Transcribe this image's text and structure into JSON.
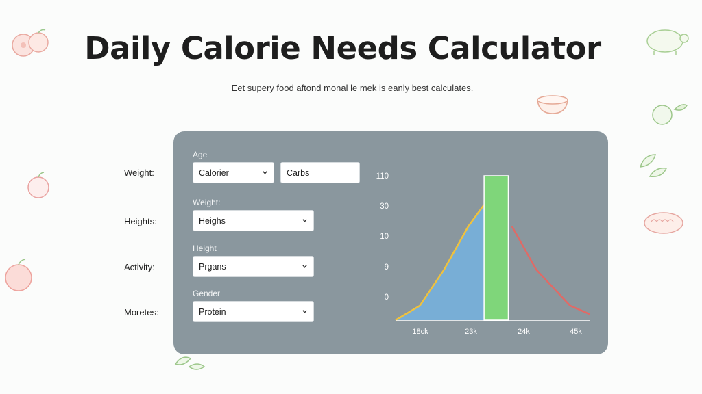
{
  "header": {
    "title": "Daily Calorie Needs Calculator",
    "subtitle": "Eet supery food aftond monal le mek is eanly best calculates."
  },
  "side_labels": [
    "Weight:",
    "Heights:",
    "Activity:",
    "Moretes:"
  ],
  "form": {
    "age": {
      "label": "Age",
      "select_value": "Calorier",
      "input_value": "Carbs"
    },
    "weight": {
      "label": "Weight:",
      "select_value": "Heighs"
    },
    "height": {
      "label": "Height",
      "select_value": "Prgans"
    },
    "gender": {
      "label": "Gender",
      "select_value": "Protein"
    }
  },
  "icons": {
    "select_chevron": "chevron-down-icon",
    "decorations": [
      "fruit-icon",
      "turtle-icon",
      "bowl-icon",
      "broccoli-icon",
      "leaf-icon",
      "apple-icon",
      "bread-icon",
      "sprout-icon"
    ]
  },
  "colors": {
    "panel": "#8a979e",
    "area_fill": "#78aed6",
    "rise_line": "#f0c23c",
    "fall_line": "#e06a66",
    "highlight_bar": "#7fd67a"
  },
  "chart_data": {
    "type": "area",
    "y_tick_labels": [
      "110",
      "30",
      "10",
      "9",
      "0"
    ],
    "x_tick_labels": [
      "18ck",
      "23k",
      "24k",
      "45k"
    ],
    "rise_series": [
      [
        0,
        0.0
      ],
      [
        1,
        0.12
      ],
      [
        2,
        0.42
      ],
      [
        3,
        0.78
      ],
      [
        3.65,
        0.96
      ]
    ],
    "fall_series": [
      [
        4.8,
        0.78
      ],
      [
        5.8,
        0.42
      ],
      [
        7.2,
        0.12
      ],
      [
        8,
        0.05
      ]
    ],
    "highlight_bar": {
      "from": 3.65,
      "to": 4.65,
      "value": 1.2
    },
    "x_range": [
      0,
      8
    ],
    "y_range": [
      0,
      1.2
    ],
    "grid": false,
    "legend": "none"
  }
}
